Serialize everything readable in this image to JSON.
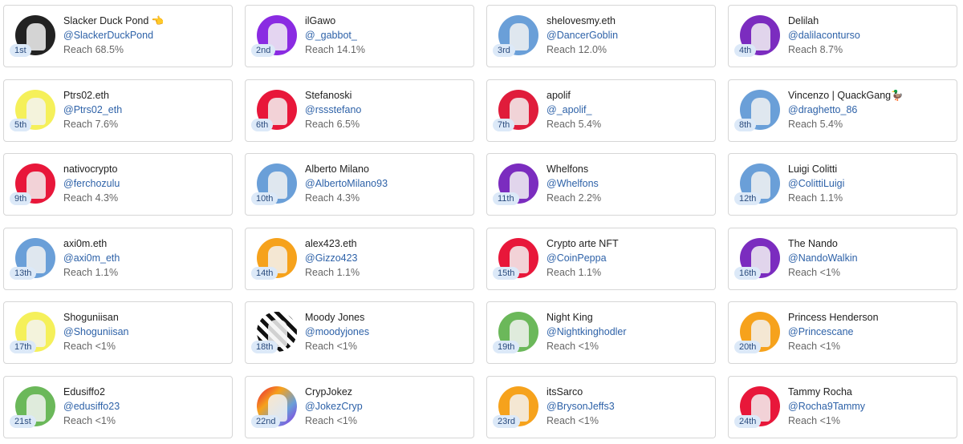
{
  "cards": [
    {
      "name": "Slacker Duck Pond 👈",
      "handle": "@SlackerDuckPond",
      "rank": "1st",
      "reach": "Reach 68.5%"
    },
    {
      "name": "ilGawo",
      "handle": "@_gabbot_",
      "rank": "2nd",
      "reach": "Reach 14.1%"
    },
    {
      "name": "shelovesmy.eth",
      "handle": "@DancerGoblin",
      "rank": "3rd",
      "reach": "Reach 12.0%"
    },
    {
      "name": "Delilah",
      "handle": "@dalilaconturso",
      "rank": "4th",
      "reach": "Reach 8.7%"
    },
    {
      "name": "Ptrs02.eth",
      "handle": "@Ptrs02_eth",
      "rank": "5th",
      "reach": "Reach 7.6%"
    },
    {
      "name": "Stefanoski",
      "handle": "@rssstefano",
      "rank": "6th",
      "reach": "Reach 6.5%"
    },
    {
      "name": "apolif",
      "handle": "@_apolif_",
      "rank": "7th",
      "reach": "Reach 5.4%"
    },
    {
      "name": "Vincenzo | QuackGang🦆",
      "handle": "@draghetto_86",
      "rank": "8th",
      "reach": "Reach 5.4%"
    },
    {
      "name": "nativocrypto",
      "handle": "@ferchozulu",
      "rank": "9th",
      "reach": "Reach 4.3%"
    },
    {
      "name": "Alberto Milano",
      "handle": "@AlbertoMilano93",
      "rank": "10th",
      "reach": "Reach 4.3%"
    },
    {
      "name": "Whelfons",
      "handle": "@Whelfons",
      "rank": "11th",
      "reach": "Reach 2.2%"
    },
    {
      "name": "Luigi Colitti",
      "handle": "@ColittiLuigi",
      "rank": "12th",
      "reach": "Reach 1.1%"
    },
    {
      "name": "axi0m.eth",
      "handle": "@axi0m_eth",
      "rank": "13th",
      "reach": "Reach 1.1%"
    },
    {
      "name": "alex423.eth",
      "handle": "@Gizzo423",
      "rank": "14th",
      "reach": "Reach 1.1%"
    },
    {
      "name": "Crypto arte NFT",
      "handle": "@CoinPeppa",
      "rank": "15th",
      "reach": "Reach 1.1%"
    },
    {
      "name": "The Nando",
      "handle": "@NandoWalkin",
      "rank": "16th",
      "reach": "Reach <1%"
    },
    {
      "name": "Shoguniisan",
      "handle": "@Shoguniisan",
      "rank": "17th",
      "reach": "Reach <1%"
    },
    {
      "name": "Moody Jones",
      "handle": "@moodyjones",
      "rank": "18th",
      "reach": "Reach <1%"
    },
    {
      "name": "Night King",
      "handle": "@Nightkinghodler",
      "rank": "19th",
      "reach": "Reach <1%"
    },
    {
      "name": "Princess Henderson",
      "handle": "@Princescane",
      "rank": "20th",
      "reach": "Reach <1%"
    },
    {
      "name": "Edusiffo2",
      "handle": "@edusiffo23",
      "rank": "21st",
      "reach": "Reach <1%"
    },
    {
      "name": "CrypJokez",
      "handle": "@JokezCryp",
      "rank": "22nd",
      "reach": "Reach <1%"
    },
    {
      "name": "itsSarco",
      "handle": "@BrysonJeffs3",
      "rank": "23rd",
      "reach": "Reach <1%"
    },
    {
      "name": "Tammy Rocha",
      "handle": "@Rocha9Tammy",
      "rank": "24th",
      "reach": "Reach <1%"
    }
  ]
}
